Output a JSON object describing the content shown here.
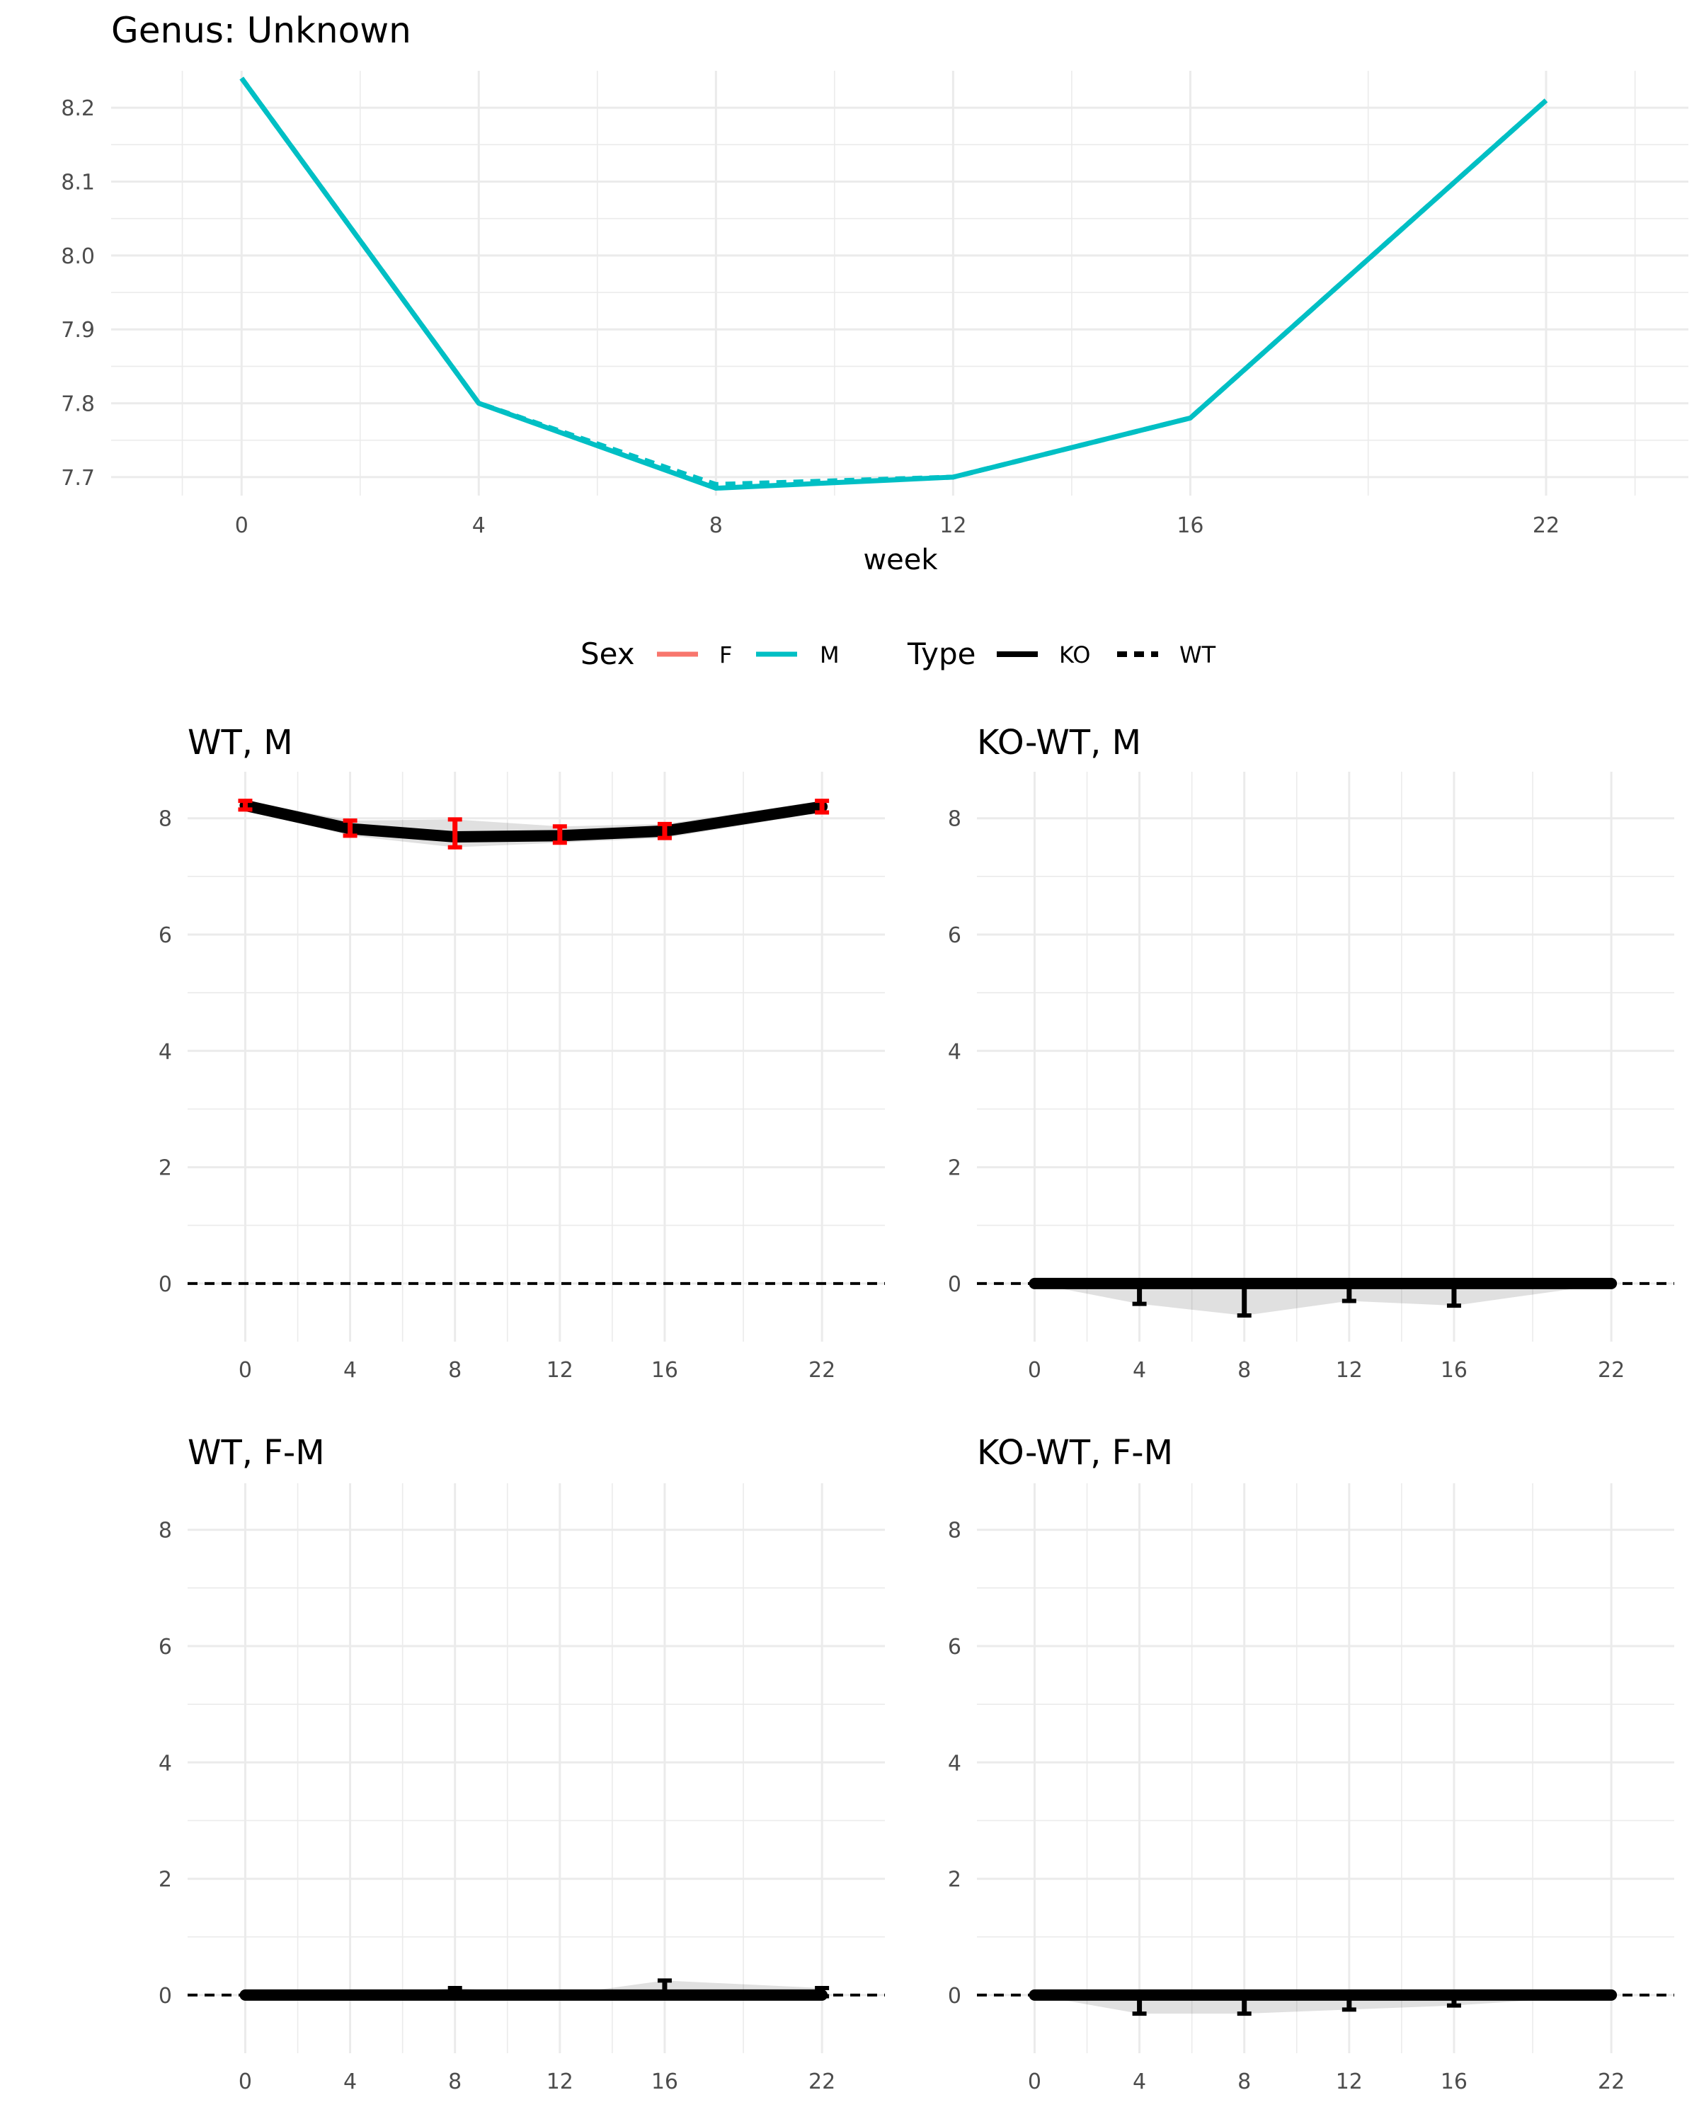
{
  "chart_data": [
    {
      "type": "line",
      "title": "Genus: Unknown",
      "xlabel": "week",
      "ylabel": "",
      "x": [
        0,
        4,
        8,
        12,
        16,
        22
      ],
      "x_ticks": [
        "0",
        "4",
        "8",
        "12",
        "16",
        "22"
      ],
      "y_ticks": [
        "7.7",
        "7.8",
        "7.9",
        "8.0",
        "8.1",
        "8.2"
      ],
      "ylim": [
        7.675,
        8.25
      ],
      "series": [
        {
          "name": "M, KO",
          "sex": "M",
          "type": "KO",
          "color": "#00BFC4",
          "dash": "solid",
          "values": [
            8.24,
            7.8,
            7.685,
            7.7,
            7.78,
            8.21
          ]
        },
        {
          "name": "M, WT",
          "sex": "M",
          "type": "WT",
          "color": "#00BFC4",
          "dash": "dashed",
          "values": [
            8.24,
            7.8,
            7.69,
            7.7,
            7.78,
            8.21
          ]
        }
      ],
      "legend": {
        "placement": "bottom",
        "sex_title": "Sex",
        "sex_items": [
          {
            "label": "F",
            "color": "#F8766D"
          },
          {
            "label": "M",
            "color": "#00BFC4"
          }
        ],
        "type_title": "Type",
        "type_items": [
          {
            "label": "KO",
            "dash": "solid"
          },
          {
            "label": "WT",
            "dash": "dashed"
          }
        ]
      }
    },
    {
      "type": "line",
      "title": "WT, M",
      "x": [
        0,
        4,
        8,
        12,
        16,
        22
      ],
      "x_ticks": [
        "0",
        "4",
        "8",
        "12",
        "16",
        "22"
      ],
      "y_ticks": [
        "0",
        "2",
        "4",
        "6",
        "8"
      ],
      "ylim": [
        -1,
        8.8
      ],
      "reference_line": 0,
      "values": [
        8.22,
        7.82,
        7.68,
        7.7,
        7.78,
        8.2
      ],
      "error_bars": {
        "color": "#ff0000",
        "lower": [
          8.15,
          7.7,
          7.5,
          7.58,
          7.66,
          8.1
        ],
        "upper": [
          8.3,
          7.96,
          7.98,
          7.86,
          7.9,
          8.3
        ]
      }
    },
    {
      "type": "line",
      "title": "KO-WT, M",
      "x": [
        0,
        4,
        8,
        12,
        16,
        22
      ],
      "x_ticks": [
        "0",
        "4",
        "8",
        "12",
        "16",
        "22"
      ],
      "y_ticks": [
        "0",
        "2",
        "4",
        "6",
        "8"
      ],
      "ylim": [
        -1,
        8.8
      ],
      "reference_line": 0,
      "values": [
        0,
        0,
        0,
        0,
        0,
        0
      ],
      "error_bars": {
        "color": "#000000",
        "lower": [
          0,
          -0.35,
          -0.55,
          -0.3,
          -0.38,
          0
        ],
        "upper": [
          0,
          0.02,
          0.02,
          0.02,
          0.02,
          0
        ]
      }
    },
    {
      "type": "line",
      "title": "WT, F-M",
      "x": [
        0,
        4,
        8,
        12,
        16,
        22
      ],
      "x_ticks": [
        "0",
        "4",
        "8",
        "12",
        "16",
        "22"
      ],
      "y_ticks": [
        "0",
        "2",
        "4",
        "6",
        "8"
      ],
      "ylim": [
        -1,
        8.8
      ],
      "reference_line": 0,
      "values": [
        0,
        0,
        0,
        0,
        0,
        0
      ],
      "error_bars": {
        "color": "#000000",
        "lower": [
          0,
          0,
          -0.02,
          0,
          -0.05,
          -0.02
        ],
        "upper": [
          0,
          0,
          0.12,
          0,
          0.25,
          0.12
        ]
      }
    },
    {
      "type": "line",
      "title": "KO-WT, F-M",
      "x": [
        0,
        4,
        8,
        12,
        16,
        22
      ],
      "x_ticks": [
        "0",
        "4",
        "8",
        "12",
        "16",
        "22"
      ],
      "y_ticks": [
        "0",
        "2",
        "4",
        "6",
        "8"
      ],
      "ylim": [
        -1,
        8.8
      ],
      "reference_line": 0,
      "values": [
        0,
        0,
        0,
        0,
        0,
        0
      ],
      "error_bars": {
        "color": "#000000",
        "lower": [
          0,
          -0.32,
          -0.32,
          -0.25,
          -0.18,
          0
        ],
        "upper": [
          0,
          0.02,
          0.02,
          0.02,
          0.02,
          0
        ]
      }
    }
  ]
}
